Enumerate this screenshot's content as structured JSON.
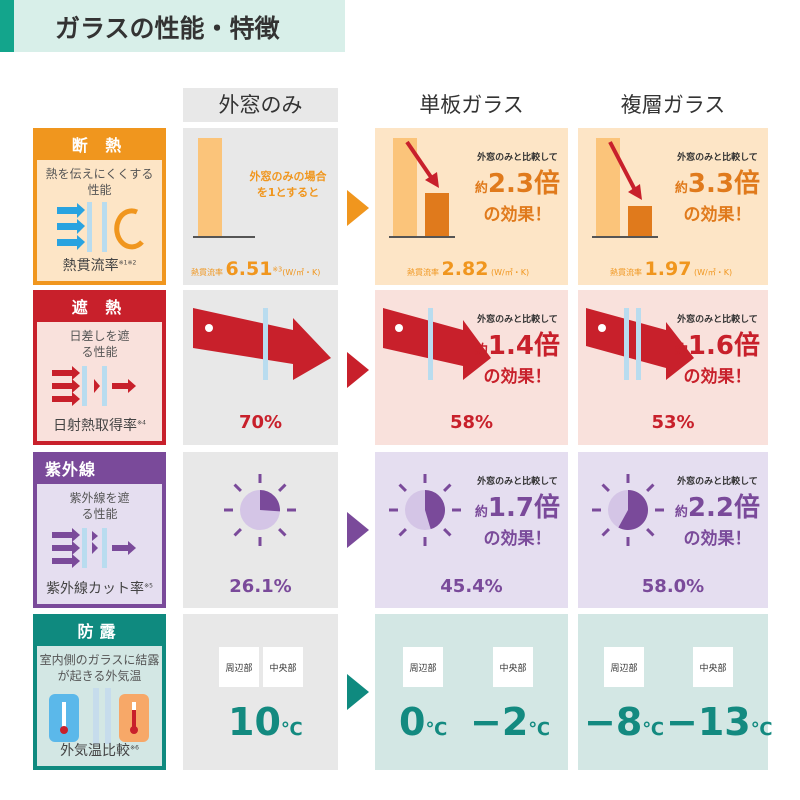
{
  "title": "ガラスの性能・特徴",
  "columns": [
    "外窓のみ",
    "単板ガラス",
    "複層ガラス"
  ],
  "colors": {
    "orange": "#f0961e",
    "red": "#c8202b",
    "purple": "#7a4a9a",
    "teal": "#0f8a7f"
  },
  "compare_prefix": "外窓のみと比較して",
  "yaku": "約",
  "bai": "倍",
  "koka": "の効果！",
  "rows": {
    "insulation": {
      "head": "断 熱",
      "desc": "熱を伝えにくくする性能",
      "foot": "熱貫流率",
      "note": "※1※2",
      "baseline_note": "外窓のみの場合を1とすると",
      "value_label": "熱貫流率",
      "unit": "(W/㎡・K)",
      "unit_note": "※3",
      "values": [
        "6.51",
        "2.82",
        "1.97"
      ],
      "factors": [
        "2.3",
        "3.3"
      ]
    },
    "solar": {
      "head": "遮 熱",
      "desc": "日差しを遮る性能",
      "foot": "日射熱取得率",
      "note": "※4",
      "values": [
        "70%",
        "58%",
        "53%"
      ],
      "factors": [
        "1.4",
        "1.6"
      ]
    },
    "uv": {
      "head": "紫外線",
      "desc": "紫外線を遮る性能",
      "foot": "紫外線カット率",
      "note": "※5",
      "values": [
        "26.1%",
        "45.4%",
        "58.0%"
      ],
      "factors": [
        "1.7",
        "2.2"
      ]
    },
    "dew": {
      "head": "防露",
      "desc": "室内側のガラスに結露が起きる外気温",
      "foot": "外気温比較",
      "note": "※6",
      "tags": [
        "周辺部",
        "中央部"
      ],
      "unit": "℃",
      "values": [
        [
          "10"
        ],
        [
          "0",
          "−2"
        ],
        [
          "−8",
          "−13"
        ]
      ]
    }
  }
}
